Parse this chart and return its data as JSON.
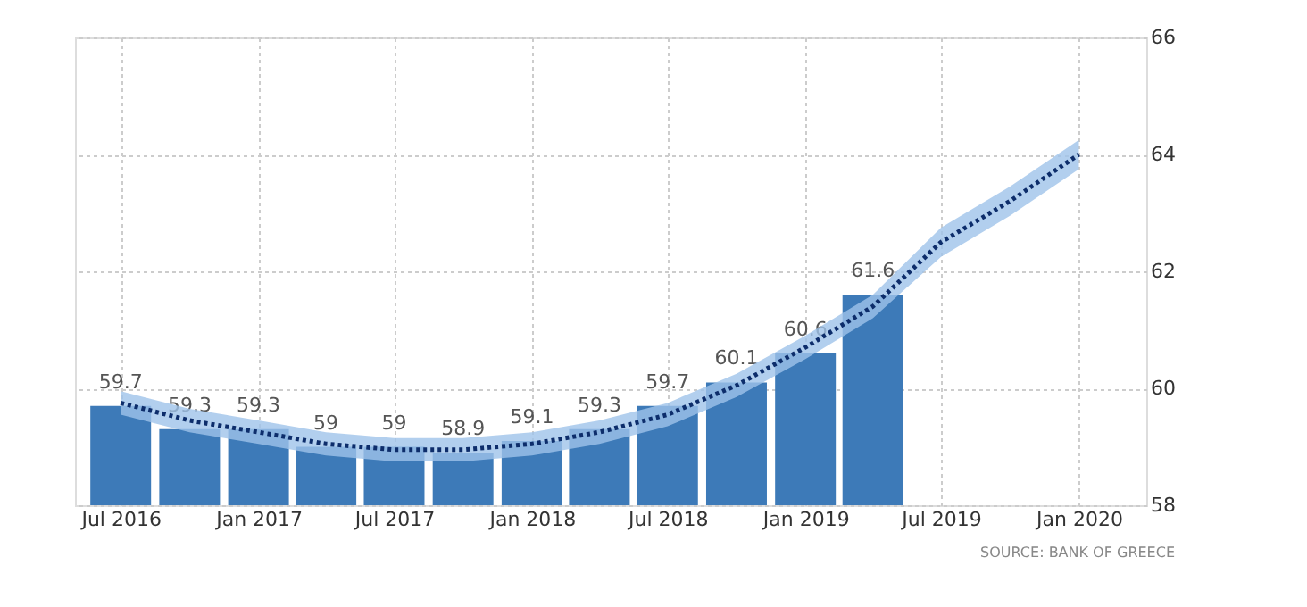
{
  "chart_data": {
    "type": "bar",
    "x": [
      "2016-07",
      "2016-10",
      "2017-01",
      "2017-04",
      "2017-07",
      "2017-10",
      "2018-01",
      "2018-04",
      "2018-07",
      "2018-10",
      "2019-01",
      "2019-04"
    ],
    "series": [
      {
        "color": "#3d7ab8",
        "values": [
          59.7,
          59.3,
          59.3,
          59,
          59,
          58.9,
          59.1,
          59.3,
          59.7,
          60.1,
          60.6,
          61.6
        ],
        "value_labels": [
          "59.7",
          "59.3",
          "59.3",
          "59",
          "59",
          "58.9",
          "59.1",
          "59.3",
          "59.7",
          "60.1",
          "60.6",
          "61.6"
        ]
      },
      {
        "type": "line",
        "color": "#0d2d6b",
        "line_style": "dotted",
        "x": [
          "2016-07",
          "2016-10",
          "2017-01",
          "2017-04",
          "2017-07",
          "2017-10",
          "2018-01",
          "2018-04",
          "2018-07",
          "2018-10",
          "2019-01",
          "2019-04",
          "2019-07",
          "2019-10",
          "2020-01"
        ],
        "values": [
          59.75,
          59.45,
          59.25,
          59.05,
          58.95,
          58.95,
          59.05,
          59.25,
          59.55,
          60.05,
          60.7,
          61.4,
          62.5,
          63.2,
          64.0
        ],
        "lower": [
          59.55,
          59.25,
          59.05,
          58.85,
          58.75,
          58.75,
          58.85,
          59.05,
          59.35,
          59.85,
          60.5,
          61.2,
          62.25,
          62.95,
          63.75
        ],
        "upper": [
          59.95,
          59.65,
          59.45,
          59.25,
          59.15,
          59.15,
          59.25,
          59.45,
          59.75,
          60.25,
          60.9,
          61.6,
          62.75,
          63.45,
          64.25
        ]
      }
    ],
    "xlim": [
      "2016-05-01",
      "2020-03-31"
    ],
    "xticks": [
      {
        "value": "2016-07-01",
        "label": "Jul 2016"
      },
      {
        "value": "2017-01-01",
        "label": "Jan 2017"
      },
      {
        "value": "2017-07-01",
        "label": "Jul 2017"
      },
      {
        "value": "2018-01-01",
        "label": "Jan 2018"
      },
      {
        "value": "2018-07-01",
        "label": "Jul 2018"
      },
      {
        "value": "2019-01-01",
        "label": "Jan 2019"
      },
      {
        "value": "2019-07-01",
        "label": "Jul 2019"
      },
      {
        "value": "2020-01-01",
        "label": "Jan 2020"
      }
    ],
    "ylim": [
      58,
      66
    ],
    "yticks": [
      58,
      60,
      62,
      64,
      66
    ],
    "grid": true,
    "annotations": [
      "SOURCE: BANK OF GREECE"
    ]
  }
}
